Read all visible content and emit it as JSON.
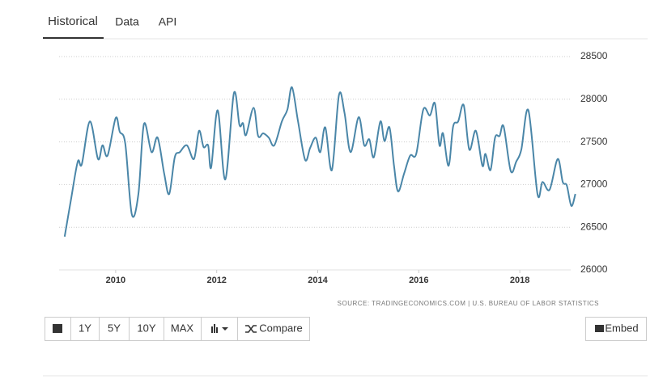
{
  "tabs": [
    "Historical",
    "Data",
    "API"
  ],
  "buttons": [
    "1Y",
    "5Y",
    "10Y",
    "MAX",
    "Compare",
    "Embed"
  ],
  "chart_data": {
    "type": "line",
    "source": "SOURCE: TRADINGECONOMICS.COM | U.S. BUREAU OF LABOR STATISTICS",
    "color": "#4a86a8",
    "x": [
      2008.99,
      2009.12,
      2009.25,
      2009.33,
      2009.49,
      2009.65,
      2009.74,
      2009.84,
      2010.0,
      2010.08,
      2010.19,
      2010.32,
      2010.45,
      2010.56,
      2010.71,
      2010.83,
      2010.96,
      2011.06,
      2011.17,
      2011.27,
      2011.41,
      2011.55,
      2011.65,
      2011.74,
      2011.83,
      2011.89,
      2012.02,
      2012.17,
      2012.34,
      2012.45,
      2012.52,
      2012.58,
      2012.73,
      2012.82,
      2012.92,
      2013.03,
      2013.14,
      2013.29,
      2013.4,
      2013.49,
      2013.61,
      2013.75,
      2013.85,
      2013.96,
      2014.05,
      2014.15,
      2014.28,
      2014.42,
      2014.53,
      2014.65,
      2014.81,
      2014.92,
      2015.02,
      2015.11,
      2015.24,
      2015.32,
      2015.42,
      2015.51,
      2015.59,
      2015.71,
      2015.83,
      2015.95,
      2016.09,
      2016.22,
      2016.32,
      2016.41,
      2016.48,
      2016.59,
      2016.68,
      2016.78,
      2016.89,
      2017.0,
      2017.13,
      2017.26,
      2017.32,
      2017.42,
      2017.51,
      2017.6,
      2017.68,
      2017.82,
      2017.93,
      2018.03,
      2018.17,
      2018.35,
      2018.45,
      2018.59,
      2018.75,
      2018.85,
      2018.93,
      2019.02,
      2019.1
    ],
    "values": [
      26390,
      26840,
      27270,
      27240,
      27740,
      27300,
      27460,
      27340,
      27780,
      27620,
      27480,
      26650,
      26890,
      27710,
      27380,
      27550,
      27130,
      26890,
      27320,
      27380,
      27460,
      27300,
      27630,
      27440,
      27460,
      27200,
      27870,
      27060,
      28070,
      27700,
      27720,
      27580,
      27900,
      27570,
      27600,
      27550,
      27460,
      27740,
      27880,
      28140,
      27740,
      27290,
      27430,
      27550,
      27380,
      27670,
      27170,
      28050,
      27840,
      27380,
      27790,
      27460,
      27530,
      27320,
      27740,
      27510,
      27670,
      27220,
      26920,
      27130,
      27340,
      27360,
      27880,
      27810,
      27950,
      27460,
      27600,
      27220,
      27680,
      27740,
      27930,
      27410,
      27630,
      27220,
      27360,
      27170,
      27550,
      27570,
      27680,
      27160,
      27270,
      27410,
      27870,
      26890,
      27030,
      26940,
      27300,
      27030,
      26990,
      26750,
      26890
    ],
    "xlim": [
      2008.88,
      2019.12
    ],
    "xticks": [
      2010,
      2012,
      2014,
      2016,
      2018
    ],
    "ylim": [
      26000,
      28500
    ],
    "yticks": [
      26000,
      26500,
      27000,
      27500,
      28000,
      28500
    ],
    "grid": true
  }
}
